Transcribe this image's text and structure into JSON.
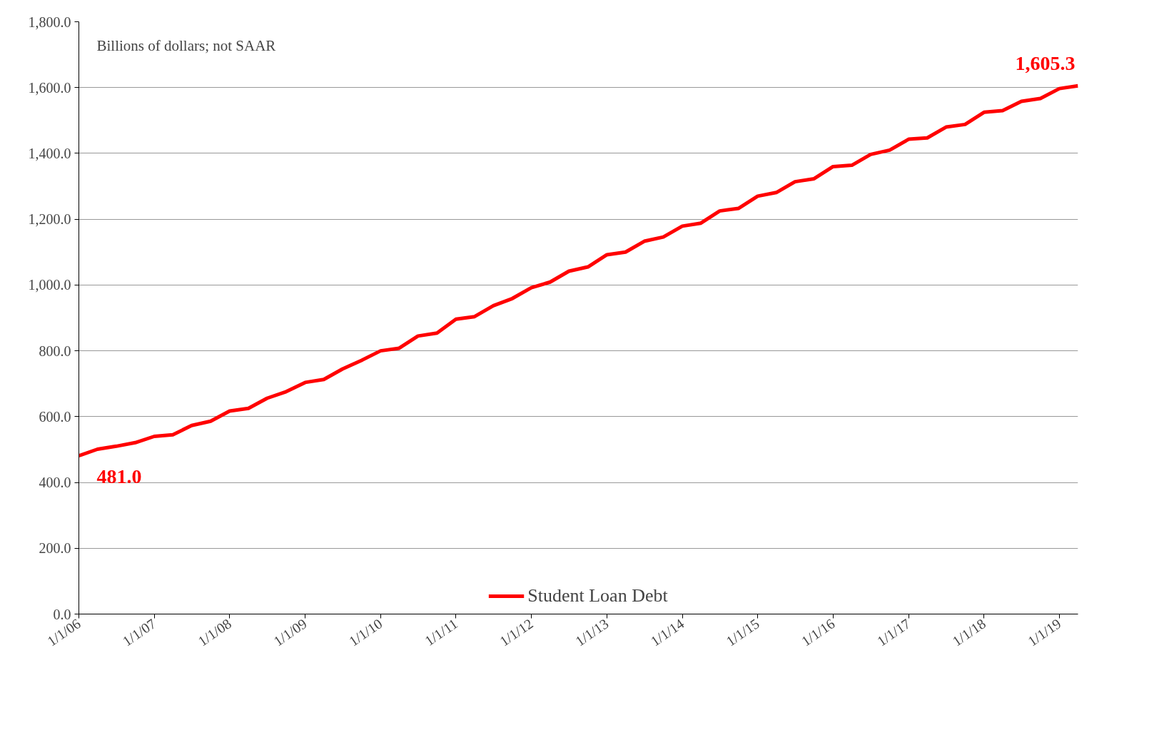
{
  "chart_data": {
    "type": "line",
    "x": [
      "2006-01",
      "2006-04",
      "2006-07",
      "2006-10",
      "2007-01",
      "2007-04",
      "2007-07",
      "2007-10",
      "2008-01",
      "2008-04",
      "2008-07",
      "2008-10",
      "2009-01",
      "2009-04",
      "2009-07",
      "2009-10",
      "2010-01",
      "2010-04",
      "2010-07",
      "2010-10",
      "2011-01",
      "2011-04",
      "2011-07",
      "2011-10",
      "2012-01",
      "2012-04",
      "2012-07",
      "2012-10",
      "2013-01",
      "2013-04",
      "2013-07",
      "2013-10",
      "2014-01",
      "2014-04",
      "2014-07",
      "2014-10",
      "2015-01",
      "2015-04",
      "2015-07",
      "2015-10",
      "2016-01",
      "2016-04",
      "2016-07",
      "2016-10",
      "2017-01",
      "2017-04",
      "2017-07",
      "2017-10",
      "2018-01",
      "2018-04",
      "2018-07",
      "2018-10",
      "2019-01",
      "2019-04"
    ],
    "series": [
      {
        "name": "Student Loan Debt",
        "color": "#ff0000",
        "values": [
          481.0,
          501,
          510,
          521,
          540,
          545,
          573,
          586,
          617,
          625,
          656,
          676,
          704,
          713,
          745,
          771,
          800,
          808,
          845,
          854,
          896,
          904,
          937,
          959,
          992,
          1009,
          1042,
          1055,
          1092,
          1100,
          1133,
          1146,
          1179,
          1188,
          1225,
          1233,
          1270,
          1281,
          1314,
          1323,
          1360,
          1364,
          1397,
          1410,
          1443,
          1447,
          1480,
          1488,
          1525,
          1530,
          1558,
          1567,
          1597,
          1605.3
        ]
      }
    ],
    "xlim": [
      "2006-01",
      "2019-04"
    ],
    "xticks": [
      {
        "value": "2006-01-01",
        "label": "1/1/06"
      },
      {
        "value": "2007-01-01",
        "label": "1/1/07"
      },
      {
        "value": "2008-01-01",
        "label": "1/1/08"
      },
      {
        "value": "2009-01-01",
        "label": "1/1/09"
      },
      {
        "value": "2010-01-01",
        "label": "1/1/10"
      },
      {
        "value": "2011-01-01",
        "label": "1/1/11"
      },
      {
        "value": "2012-01-01",
        "label": "1/1/12"
      },
      {
        "value": "2013-01-01",
        "label": "1/1/13"
      },
      {
        "value": "2014-01-01",
        "label": "1/1/14"
      },
      {
        "value": "2015-01-01",
        "label": "1/1/15"
      },
      {
        "value": "2016-01-01",
        "label": "1/1/16"
      },
      {
        "value": "2017-01-01",
        "label": "1/1/17"
      },
      {
        "value": "2018-01-01",
        "label": "1/1/18"
      },
      {
        "value": "2019-01-01",
        "label": "1/1/19"
      }
    ],
    "ylim": [
      0,
      1800
    ],
    "yticks": [
      {
        "value": 0,
        "label": "0.0"
      },
      {
        "value": 200,
        "label": "200.0"
      },
      {
        "value": 400,
        "label": "400.0"
      },
      {
        "value": 600,
        "label": "600.0"
      },
      {
        "value": 800,
        "label": "800.0"
      },
      {
        "value": 1000,
        "label": "1,000.0"
      },
      {
        "value": 1200,
        "label": "1,200.0"
      },
      {
        "value": 1400,
        "label": "1,400.0"
      },
      {
        "value": 1600,
        "label": "1,600.0"
      },
      {
        "value": 1800,
        "label": "1,800.0"
      }
    ],
    "annotations": [
      "Billions of dollars; not SAAR",
      {
        "text": "481.0",
        "x": "2006-01",
        "y": 481.0
      },
      {
        "text": "1,605.3",
        "x": "2019-04",
        "y": 1605.3
      }
    ],
    "grid": "y",
    "legend": "bottom",
    "marker": "none",
    "line_style": "solid"
  }
}
